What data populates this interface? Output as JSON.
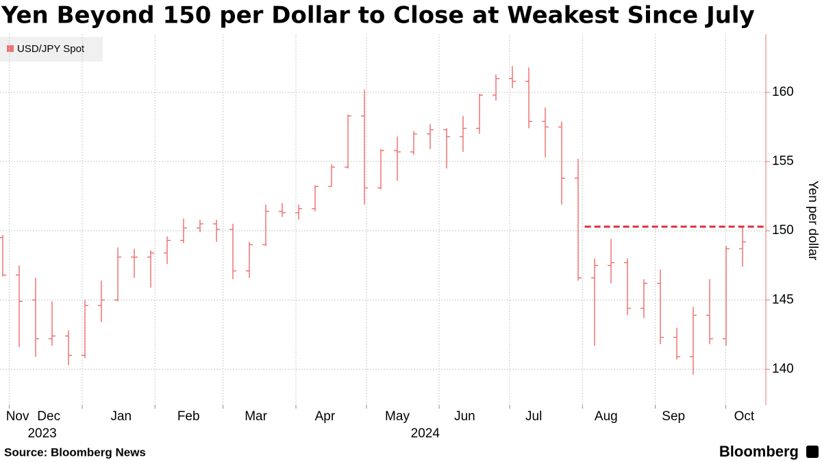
{
  "chart_data": {
    "type": "ohlc",
    "title": "Yen Beyond 150 per Dollar to Close at Weakest Since July",
    "y_axis_label": "Yen per dollar",
    "source": "Source: Bloomberg News",
    "brand": "Bloomberg",
    "categories": [
      null,
      null,
      null,
      null,
      null,
      null,
      null,
      null,
      null,
      null,
      null,
      null,
      null,
      null,
      null,
      null,
      null,
      null,
      null,
      null,
      null,
      null,
      null,
      null,
      null,
      null,
      null,
      null,
      null,
      null,
      null,
      null,
      null,
      null,
      null,
      null,
      null,
      null,
      null,
      null,
      null,
      null,
      null,
      null,
      null,
      null
    ],
    "series": [
      {
        "name": "USD/JPY Spot",
        "color": "#ee7272",
        "open": [
          149.5,
          146.8,
          145.0,
          142.2,
          142.4,
          141.0,
          144.6,
          145.0,
          148.1,
          148.1,
          148.4,
          149.3,
          150.2,
          150.5,
          150.1,
          147.1,
          149.0,
          151.4,
          151.3,
          151.6,
          153.2,
          154.6,
          158.3,
          153.1,
          155.8,
          155.7,
          157.0,
          157.3,
          156.8,
          157.4,
          159.8,
          161.0,
          160.8,
          157.9,
          157.5,
          153.8,
          146.6,
          147.5,
          147.7,
          144.4,
          146.2,
          142.3,
          140.9,
          143.9,
          142.2,
          148.7
        ],
        "high": [
          149.7,
          147.5,
          146.6,
          144.9,
          142.8,
          145.0,
          146.4,
          148.8,
          148.7,
          148.6,
          149.6,
          150.9,
          150.8,
          150.8,
          150.5,
          149.2,
          151.9,
          152.0,
          151.9,
          153.3,
          154.8,
          158.4,
          160.2,
          155.9,
          156.8,
          157.2,
          157.7,
          157.4,
          158.3,
          159.9,
          161.3,
          161.9,
          161.8,
          158.9,
          157.9,
          155.2,
          148.0,
          149.4,
          148.0,
          146.5,
          147.2,
          143.0,
          144.5,
          146.5,
          148.9,
          150.3
        ],
        "low": [
          146.7,
          141.6,
          140.9,
          141.7,
          140.3,
          140.8,
          143.4,
          144.9,
          146.6,
          145.9,
          147.6,
          149.1,
          149.9,
          149.2,
          146.5,
          146.6,
          148.9,
          151.0,
          150.8,
          151.4,
          153.2,
          154.5,
          151.9,
          153.0,
          153.6,
          155.5,
          155.9,
          154.5,
          155.7,
          157.0,
          159.4,
          160.3,
          157.4,
          155.3,
          151.9,
          146.4,
          141.7,
          146.2,
          143.9,
          143.7,
          141.8,
          140.7,
          139.6,
          141.8,
          141.7,
          147.4
        ],
        "close": [
          146.8,
          144.9,
          142.2,
          142.4,
          141.0,
          144.6,
          145.0,
          148.1,
          148.1,
          148.4,
          149.3,
          150.2,
          150.5,
          150.1,
          147.1,
          149.0,
          151.4,
          151.3,
          151.6,
          153.2,
          154.6,
          158.3,
          153.1,
          155.8,
          155.7,
          157.0,
          157.3,
          156.8,
          157.4,
          159.8,
          161.0,
          160.8,
          157.9,
          157.5,
          153.8,
          146.6,
          147.5,
          147.7,
          144.4,
          146.2,
          142.3,
          140.9,
          143.9,
          142.2,
          148.7,
          149.2
        ]
      }
    ],
    "reference_line": {
      "value": 150.3,
      "start": 35.4,
      "color": "#e0303a"
    },
    "ylim": [
      137.4,
      164.2
    ],
    "yticks": [
      140,
      145,
      150,
      155,
      160
    ],
    "xticks": [
      {
        "value": 0.9,
        "label": "Nov"
      },
      {
        "value": 2.8,
        "label": "Dec"
      },
      {
        "value": 7.2,
        "label": "Jan"
      },
      {
        "value": 11.3,
        "label": "Feb"
      },
      {
        "value": 15.4,
        "label": "Mar"
      },
      {
        "value": 19.6,
        "label": "Apr"
      },
      {
        "value": 24,
        "label": "May"
      },
      {
        "value": 28.1,
        "label": "Jun"
      },
      {
        "value": 32.3,
        "label": "Jul"
      },
      {
        "value": 36.7,
        "label": "Aug"
      },
      {
        "value": 40.8,
        "label": "Sep"
      },
      {
        "value": 45.1,
        "label": "Oct"
      }
    ],
    "month_starts": [
      0.57,
      5,
      9.43,
      13.57,
      18,
      22.29,
      26.71,
      31,
      35.43,
      39.86,
      44.14
    ],
    "year_labels": [
      {
        "value": 2.4,
        "label": "2023"
      },
      {
        "value": 25.7,
        "label": "2024"
      }
    ],
    "grid": true,
    "legend": "upper left"
  }
}
